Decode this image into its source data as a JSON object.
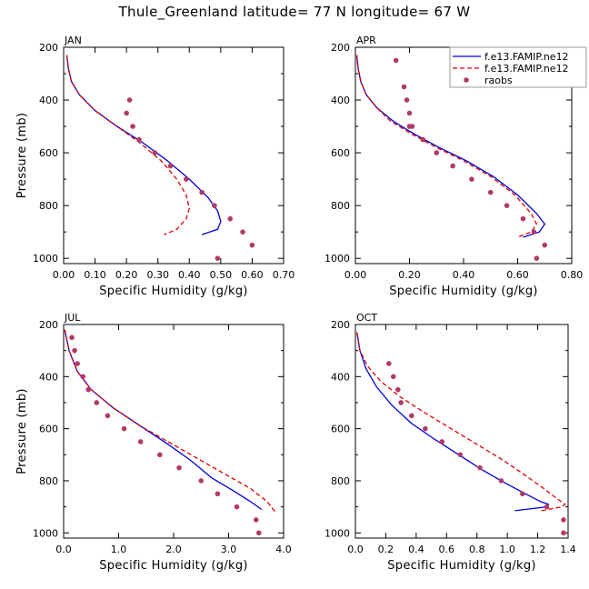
{
  "figure": {
    "title": "Thule_Greenland  latitude= 77 N longitude= 67 W"
  },
  "legend_entries": [
    "f.e13.FAMIP.ne12",
    "f.e13.FAMIP.ne12",
    "raobs"
  ],
  "series_colors": {
    "model1": "#0000dd",
    "model2": "#dd0000",
    "raobs": "#b03a6a"
  },
  "chart_data": [
    {
      "type": "line",
      "panel": "JAN",
      "xlabel": "Specific Humidity (g/kg)",
      "ylabel": "Pressure (mb)",
      "xlim": [
        0,
        0.7
      ],
      "ylim": [
        200,
        1020
      ],
      "y_inverted": true,
      "xticks": [
        "0.00",
        "0.10",
        "0.20",
        "0.30",
        "0.40",
        "0.50",
        "0.60",
        "0.70"
      ],
      "yticks": [
        "200",
        "400",
        "600",
        "800",
        "1000"
      ],
      "legend": false,
      "series": [
        {
          "key": "model1",
          "style": "solid",
          "x": [
            0.01,
            0.015,
            0.025,
            0.05,
            0.1,
            0.17,
            0.25,
            0.33,
            0.4,
            0.46,
            0.49,
            0.5,
            0.49,
            0.44
          ],
          "y": [
            230,
            280,
            330,
            380,
            440,
            500,
            560,
            630,
            700,
            770,
            820,
            860,
            890,
            910
          ]
        },
        {
          "key": "model2",
          "style": "dashed",
          "x": [
            0.01,
            0.015,
            0.025,
            0.05,
            0.1,
            0.17,
            0.24,
            0.31,
            0.36,
            0.39,
            0.4,
            0.39,
            0.36,
            0.32
          ],
          "y": [
            230,
            280,
            330,
            380,
            440,
            500,
            560,
            630,
            700,
            760,
            810,
            850,
            890,
            910
          ]
        },
        {
          "key": "raobs",
          "style": "points",
          "x": [
            0.21,
            0.2,
            0.22,
            0.24,
            0.29,
            0.34,
            0.39,
            0.44,
            0.48,
            0.53,
            0.57,
            0.6,
            0.49
          ],
          "y": [
            400,
            450,
            500,
            550,
            600,
            650,
            700,
            750,
            800,
            850,
            900,
            950,
            1000
          ]
        }
      ]
    },
    {
      "type": "line",
      "panel": "APR",
      "xlabel": "Specific Humidity (g/kg)",
      "ylabel": "",
      "xlim": [
        0,
        0.8
      ],
      "ylim": [
        200,
        1020
      ],
      "y_inverted": true,
      "xticks": [
        "0.00",
        "0.20",
        "0.40",
        "0.60",
        "0.80"
      ],
      "yticks": [
        "200",
        "400",
        "600",
        "800",
        "1000"
      ],
      "legend": true,
      "series": [
        {
          "key": "model1",
          "style": "solid",
          "x": [
            0.005,
            0.01,
            0.02,
            0.04,
            0.08,
            0.14,
            0.22,
            0.31,
            0.41,
            0.51,
            0.6,
            0.67,
            0.7,
            0.68,
            0.62
          ],
          "y": [
            230,
            280,
            330,
            380,
            430,
            480,
            530,
            580,
            630,
            690,
            760,
            830,
            870,
            900,
            920
          ]
        },
        {
          "key": "model2",
          "style": "dashed",
          "x": [
            0.005,
            0.01,
            0.02,
            0.04,
            0.08,
            0.13,
            0.21,
            0.3,
            0.4,
            0.5,
            0.59,
            0.65,
            0.67,
            0.65,
            0.6
          ],
          "y": [
            230,
            280,
            330,
            380,
            430,
            480,
            530,
            580,
            630,
            690,
            760,
            830,
            870,
            900,
            920
          ]
        },
        {
          "key": "raobs",
          "style": "points",
          "x": [
            0.15,
            0.18,
            0.19,
            0.2,
            0.2,
            0.21,
            0.25,
            0.3,
            0.36,
            0.43,
            0.5,
            0.56,
            0.62,
            0.66,
            0.7,
            0.67
          ],
          "y": [
            250,
            350,
            400,
            450,
            500,
            500,
            550,
            600,
            650,
            700,
            750,
            800,
            850,
            900,
            950,
            1000
          ]
        }
      ]
    },
    {
      "type": "line",
      "panel": "JUL",
      "xlabel": "Specific Humidity (g/kg)",
      "ylabel": "Pressure (mb)",
      "xlim": [
        0,
        4.0
      ],
      "ylim": [
        200,
        1020
      ],
      "y_inverted": true,
      "xticks": [
        "0.0",
        "1.0",
        "2.0",
        "3.0",
        "4.0"
      ],
      "yticks": [
        "200",
        "400",
        "600",
        "800",
        "1000"
      ],
      "legend": false,
      "series": [
        {
          "key": "model1",
          "style": "solid",
          "x": [
            0.02,
            0.1,
            0.25,
            0.5,
            0.9,
            1.4,
            1.9,
            2.3,
            2.7,
            3.1,
            3.4,
            3.6
          ],
          "y": [
            220,
            300,
            380,
            450,
            520,
            590,
            660,
            720,
            790,
            840,
            880,
            910
          ]
        },
        {
          "key": "model2",
          "style": "dashed",
          "x": [
            0.02,
            0.1,
            0.25,
            0.5,
            0.9,
            1.4,
            1.9,
            2.4,
            2.9,
            3.4,
            3.7,
            3.85
          ],
          "y": [
            220,
            300,
            380,
            450,
            520,
            590,
            650,
            710,
            770,
            830,
            880,
            920
          ]
        },
        {
          "key": "raobs",
          "style": "points",
          "x": [
            0.15,
            0.2,
            0.25,
            0.35,
            0.45,
            0.6,
            0.8,
            1.1,
            1.4,
            1.75,
            2.1,
            2.5,
            2.8,
            3.15,
            3.5,
            3.55
          ],
          "y": [
            250,
            300,
            350,
            400,
            450,
            500,
            550,
            600,
            650,
            700,
            750,
            800,
            850,
            900,
            950,
            1000
          ]
        }
      ]
    },
    {
      "type": "line",
      "panel": "OCT",
      "xlabel": "Specific Humidity (g/kg)",
      "ylabel": "",
      "xlim": [
        0,
        1.4
      ],
      "ylim": [
        200,
        1020
      ],
      "y_inverted": true,
      "xticks": [
        "0.0",
        "0.2",
        "0.4",
        "0.6",
        "0.8",
        "1.0",
        "1.2",
        "1.4"
      ],
      "yticks": [
        "200",
        "400",
        "600",
        "800",
        "1000"
      ],
      "legend": false,
      "series": [
        {
          "key": "model1",
          "style": "solid",
          "x": [
            0.01,
            0.03,
            0.07,
            0.14,
            0.24,
            0.37,
            0.52,
            0.68,
            0.84,
            0.99,
            1.12,
            1.22,
            1.27,
            1.26,
            1.05
          ],
          "y": [
            230,
            300,
            370,
            440,
            510,
            580,
            640,
            700,
            760,
            810,
            850,
            880,
            890,
            900,
            915
          ]
        },
        {
          "key": "model2",
          "style": "dashed",
          "x": [
            0.01,
            0.03,
            0.08,
            0.17,
            0.3,
            0.46,
            0.63,
            0.8,
            0.97,
            1.12,
            1.24,
            1.33,
            1.38,
            1.36,
            1.22
          ],
          "y": [
            230,
            300,
            360,
            420,
            480,
            540,
            600,
            660,
            720,
            780,
            830,
            870,
            890,
            900,
            915
          ]
        },
        {
          "key": "raobs",
          "style": "points",
          "x": [
            0.22,
            0.25,
            0.28,
            0.3,
            0.37,
            0.46,
            0.57,
            0.69,
            0.82,
            0.96,
            1.1,
            1.26,
            1.37,
            1.37
          ],
          "y": [
            350,
            400,
            450,
            500,
            550,
            600,
            650,
            700,
            750,
            800,
            850,
            900,
            950,
            1000
          ]
        }
      ]
    }
  ]
}
